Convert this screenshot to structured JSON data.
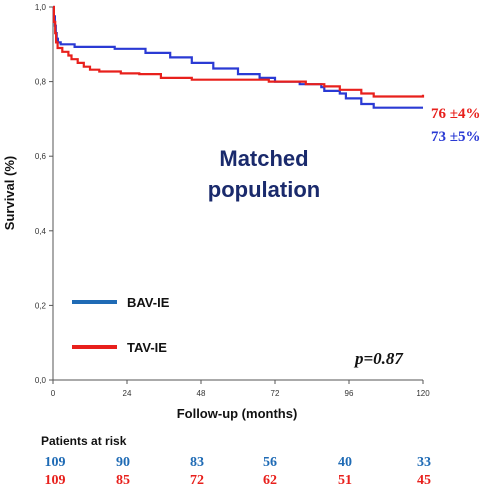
{
  "chart_data": {
    "type": "line",
    "title": "",
    "center_label_lines": [
      "Matched",
      "population"
    ],
    "xlabel": "Follow-up (months)",
    "ylabel": "Survival (%)",
    "xlim": [
      0,
      120
    ],
    "ylim": [
      0,
      1
    ],
    "x_ticks": [
      0,
      24,
      48,
      72,
      96,
      120
    ],
    "x_tick_labels": [
      "0",
      "24",
      "48",
      "72",
      "96",
      "120"
    ],
    "y_ticks": [
      0,
      0.2,
      0.4,
      0.6,
      0.8,
      1.0
    ],
    "y_tick_labels": [
      "0,0",
      "0,2",
      "0,4",
      "0,6",
      "0,8",
      "1,0"
    ],
    "grid": false,
    "legend_placement": "bottom-left",
    "series": [
      {
        "name": "BAV-IE",
        "color": "#2a3ad4",
        "legend_color": "#1f6bb5",
        "end_label": "73 ±5%",
        "steps": [
          [
            0,
            1.0
          ],
          [
            0.3,
            0.975
          ],
          [
            0.6,
            0.95
          ],
          [
            0.9,
            0.93
          ],
          [
            1.2,
            0.915
          ],
          [
            1.6,
            0.905
          ],
          [
            2.5,
            0.9
          ],
          [
            7,
            0.893
          ],
          [
            20,
            0.888
          ],
          [
            30,
            0.877
          ],
          [
            38,
            0.865
          ],
          [
            45,
            0.85
          ],
          [
            52,
            0.835
          ],
          [
            60,
            0.82
          ],
          [
            67,
            0.81
          ],
          [
            72,
            0.8
          ],
          [
            80,
            0.793
          ],
          [
            87,
            0.785
          ],
          [
            88,
            0.775
          ],
          [
            93,
            0.768
          ],
          [
            95,
            0.755
          ],
          [
            100,
            0.74
          ],
          [
            104,
            0.73
          ],
          [
            120,
            0.73
          ]
        ]
      },
      {
        "name": "TAV-IE",
        "color": "#e8201c",
        "legend_color": "#e8201c",
        "end_label": "76 ±4%",
        "steps": [
          [
            0,
            1.0
          ],
          [
            0.3,
            0.96
          ],
          [
            0.7,
            0.93
          ],
          [
            1.0,
            0.905
          ],
          [
            1.5,
            0.89
          ],
          [
            3,
            0.88
          ],
          [
            5,
            0.87
          ],
          [
            6,
            0.86
          ],
          [
            8,
            0.85
          ],
          [
            10,
            0.84
          ],
          [
            12,
            0.832
          ],
          [
            15,
            0.827
          ],
          [
            22,
            0.822
          ],
          [
            28,
            0.82
          ],
          [
            35,
            0.81
          ],
          [
            45,
            0.805
          ],
          [
            70,
            0.8
          ],
          [
            82,
            0.793
          ],
          [
            88,
            0.787
          ],
          [
            93,
            0.778
          ],
          [
            100,
            0.768
          ],
          [
            104,
            0.76
          ],
          [
            120,
            0.765
          ]
        ]
      }
    ],
    "annotation": "p=0.87"
  },
  "risk_table": {
    "title": "Patients at risk",
    "rows": [
      {
        "color": "#1f6bb5",
        "values": [
          "109",
          "90",
          "83",
          "56",
          "40",
          "33"
        ]
      },
      {
        "color": "#e8201c",
        "values": [
          "109",
          "85",
          "72",
          "62",
          "51",
          "45"
        ]
      }
    ]
  }
}
